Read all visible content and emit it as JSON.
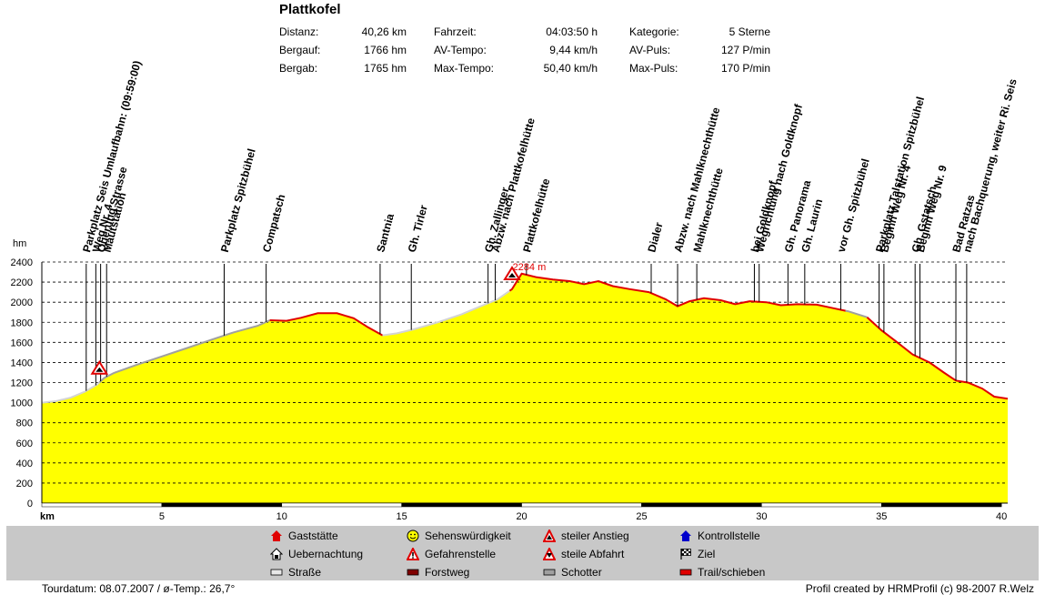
{
  "header": {
    "title": "Plattkofel",
    "stats": [
      [
        {
          "label": "Distanz:",
          "value": "40,26 km"
        },
        {
          "label": "Fahrzeit:",
          "value": "04:03:50 h"
        },
        {
          "label": "Kategorie:",
          "value": "5 Sterne"
        }
      ],
      [
        {
          "label": "Bergauf:",
          "value": "1766 hm"
        },
        {
          "label": "AV-Tempo:",
          "value": "9,44 km/h"
        },
        {
          "label": "AV-Puls:",
          "value": "127 P/min"
        }
      ],
      [
        {
          "label": "Bergab:",
          "value": "1765 hm"
        },
        {
          "label": "Max-Tempo:",
          "value": "50,40 km/h"
        },
        {
          "label": "Max-Puls:",
          "value": "170 P/min"
        }
      ]
    ]
  },
  "chart_data": {
    "type": "area",
    "title": "Plattkofel",
    "xlabel": "km",
    "ylabel": "hm",
    "xlim": [
      0,
      40.26
    ],
    "ylim": [
      0,
      2400
    ],
    "xticks": [
      5,
      10,
      15,
      20,
      25,
      30,
      35,
      40
    ],
    "yticks": [
      0,
      200,
      400,
      600,
      800,
      1000,
      1200,
      1400,
      1600,
      1800,
      2000,
      2200,
      2400
    ],
    "grid": true,
    "fill_color": "#ffff00",
    "max_label": "2284 m",
    "max_point": {
      "x": 20.0,
      "y": 2284
    },
    "profile": [
      [
        0,
        1000
      ],
      [
        0.6,
        1015
      ],
      [
        1.2,
        1050
      ],
      [
        1.8,
        1110
      ],
      [
        2.3,
        1180
      ],
      [
        2.6,
        1245
      ],
      [
        3.0,
        1295
      ],
      [
        4.0,
        1380
      ],
      [
        5.0,
        1460
      ],
      [
        6.0,
        1540
      ],
      [
        7.0,
        1620
      ],
      [
        8.0,
        1700
      ],
      [
        9.0,
        1765
      ],
      [
        9.5,
        1820
      ],
      [
        10.2,
        1815
      ],
      [
        10.8,
        1845
      ],
      [
        11.5,
        1890
      ],
      [
        12.3,
        1890
      ],
      [
        13.0,
        1840
      ],
      [
        13.6,
        1750
      ],
      [
        14.2,
        1670
      ],
      [
        14.8,
        1690
      ],
      [
        15.5,
        1730
      ],
      [
        16.5,
        1800
      ],
      [
        17.5,
        1880
      ],
      [
        18.3,
        1960
      ],
      [
        19.0,
        2030
      ],
      [
        19.6,
        2130
      ],
      [
        20.0,
        2284
      ],
      [
        20.6,
        2250
      ],
      [
        21.3,
        2225
      ],
      [
        22.0,
        2210
      ],
      [
        22.6,
        2180
      ],
      [
        23.2,
        2210
      ],
      [
        23.8,
        2160
      ],
      [
        24.5,
        2130
      ],
      [
        25.3,
        2100
      ],
      [
        26.0,
        2030
      ],
      [
        26.5,
        1960
      ],
      [
        27.0,
        2010
      ],
      [
        27.6,
        2040
      ],
      [
        28.3,
        2020
      ],
      [
        28.9,
        1980
      ],
      [
        29.5,
        2010
      ],
      [
        30.2,
        2000
      ],
      [
        30.8,
        1970
      ],
      [
        31.5,
        1980
      ],
      [
        32.3,
        1975
      ],
      [
        33.0,
        1940
      ],
      [
        33.6,
        1910
      ],
      [
        34.4,
        1850
      ],
      [
        35.0,
        1720
      ],
      [
        35.6,
        1610
      ],
      [
        36.3,
        1480
      ],
      [
        37.0,
        1400
      ],
      [
        37.6,
        1300
      ],
      [
        38.1,
        1220
      ],
      [
        38.6,
        1200
      ],
      [
        39.2,
        1140
      ],
      [
        39.7,
        1060
      ],
      [
        40.26,
        1040
      ]
    ],
    "surface_segments": [
      {
        "from": 0,
        "to": 2.4,
        "type": "Straße"
      },
      {
        "from": 2.4,
        "to": 9.5,
        "type": "Schotter"
      },
      {
        "from": 9.5,
        "to": 14.2,
        "type": "Trail/schieben"
      },
      {
        "from": 14.2,
        "to": 19.5,
        "type": "Straße"
      },
      {
        "from": 19.5,
        "to": 33.5,
        "type": "Trail/schieben"
      },
      {
        "from": 33.5,
        "to": 34.4,
        "type": "Schotter"
      },
      {
        "from": 34.4,
        "to": 40.26,
        "type": "Trail/schieben"
      }
    ],
    "track_bar": [
      {
        "from": 0,
        "to": 5,
        "dark": false
      },
      {
        "from": 5,
        "to": 10,
        "dark": true
      },
      {
        "from": 10,
        "to": 15,
        "dark": false
      },
      {
        "from": 15,
        "to": 20,
        "dark": true
      },
      {
        "from": 20,
        "to": 25,
        "dark": false
      },
      {
        "from": 25,
        "to": 30,
        "dark": true
      },
      {
        "from": 30,
        "to": 35,
        "dark": false
      },
      {
        "from": 35,
        "to": 40,
        "dark": true
      }
    ],
    "waypoints": [
      {
        "x": 1.85,
        "label": "Parkplatz Seis Umlaufbahn: (09:59:00)"
      },
      {
        "x": 2.25,
        "label": "Weg Nr. 4"
      },
      {
        "x": 2.45,
        "label": "Querung Strasse"
      },
      {
        "x": 2.7,
        "label": "Mautstation"
      },
      {
        "x": 7.6,
        "label": "Parkplatz Spitzbühel"
      },
      {
        "x": 9.35,
        "label": "Compatsch"
      },
      {
        "x": 14.1,
        "label": "Santnia"
      },
      {
        "x": 15.4,
        "label": "Gh. Tirler"
      },
      {
        "x": 18.6,
        "label": "Gh. Zallinger"
      },
      {
        "x": 18.9,
        "label": "Abzw. nach Plattkofelhütte"
      },
      {
        "x": 20.2,
        "label": "Plattkofelhütte"
      },
      {
        "x": 25.4,
        "label": "Dialer"
      },
      {
        "x": 26.5,
        "label": "Abzw. nach Mahlknechthütte"
      },
      {
        "x": 27.3,
        "label": "Mahlknechthütte"
      },
      {
        "x": 29.7,
        "label": "bei Goldknopf"
      },
      {
        "x": 29.9,
        "label": "Wegrichtung nach Goldknopf"
      },
      {
        "x": 31.1,
        "label": "Gh. Panorama"
      },
      {
        "x": 31.8,
        "label": "Gh. Laurin"
      },
      {
        "x": 33.3,
        "label": "vor Gh. Spitzbühel"
      },
      {
        "x": 34.9,
        "label": "Parkplatz Talstation Spitzbühel"
      },
      {
        "x": 35.1,
        "label": "Beginn Weg Nr. 4"
      },
      {
        "x": 36.4,
        "label": "Gh. Gstatsch"
      },
      {
        "x": 36.6,
        "label": "Beginn Weg Nr. 9"
      },
      {
        "x": 38.1,
        "label": "Bad Ratzas"
      },
      {
        "x": 38.55,
        "label": "nach Bachquerung, weiter Ri. Seis"
      }
    ],
    "warning_markers": [
      {
        "x": 2.4,
        "y": 1270,
        "type": "steiler Anstieg"
      },
      {
        "x": 19.6,
        "y": 2210,
        "type": "steiler Anstieg"
      }
    ]
  },
  "legend": {
    "items": [
      {
        "label": "Gaststätte",
        "icon": "house-red-icon"
      },
      {
        "label": "Sehenswürdigkeit",
        "icon": "smiley-icon"
      },
      {
        "label": "steiler Anstieg",
        "icon": "warning-triangle-icon"
      },
      {
        "label": "Kontrollstelle",
        "icon": "house-blue-icon"
      },
      {
        "label": "Uebernachtung",
        "icon": "house-white-icon"
      },
      {
        "label": "Gefahrenstelle",
        "icon": "warning-exclamation-icon"
      },
      {
        "label": "steile Abfahrt",
        "icon": "warning-triangle-dark-icon"
      },
      {
        "label": "Ziel",
        "icon": "checkered-flag-icon"
      },
      {
        "label": "Straße",
        "icon": "swatch-lightgray"
      },
      {
        "label": "Forstweg",
        "icon": "swatch-darkred"
      },
      {
        "label": "Schotter",
        "icon": "swatch-gray"
      },
      {
        "label": "Trail/schieben",
        "icon": "swatch-red"
      }
    ]
  },
  "footer": {
    "left": "Tourdatum: 08.07.2007  /  ø-Temp.: 26,7°",
    "right": "Profil created by HRMProfil (c) 98-2007 R.Welz"
  },
  "colors": {
    "Straße": "#d4d4d4",
    "Forstweg": "#800000",
    "Schotter": "#a0a0a0",
    "Trail/schieben": "#e00000"
  }
}
